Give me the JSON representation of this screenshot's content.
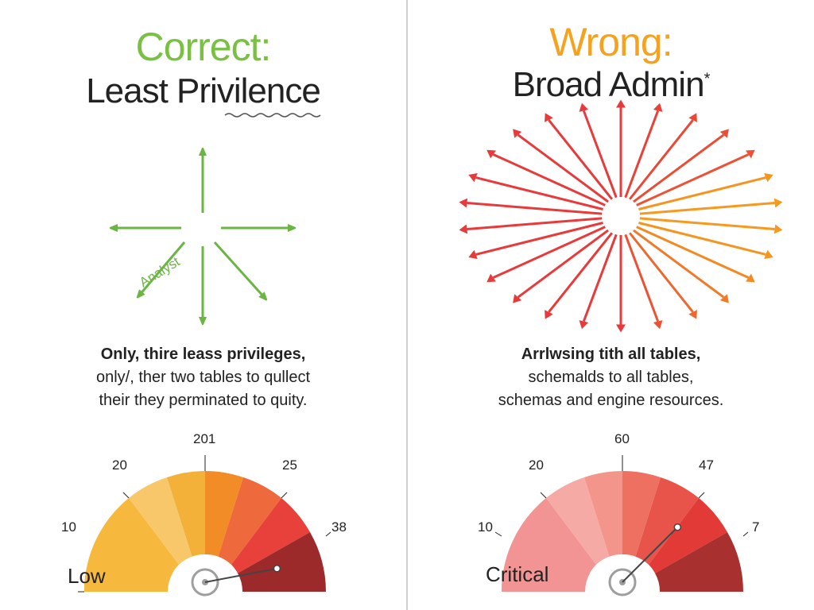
{
  "left": {
    "verdict": "Correct:",
    "title": "Least Privilence",
    "diagram_label": "Analyst",
    "caption": [
      "Only, thire leass privileges,",
      "only/, ther two tables to qullect",
      "their they perminated to quity."
    ],
    "gauge": {
      "ticks": [
        "10",
        "20",
        "201",
        "25",
        "38"
      ],
      "level_label": "Low",
      "needle_fraction": 0.94
    },
    "colors": {
      "verdict": "#79c043",
      "arrows": "#6bb543"
    }
  },
  "right": {
    "verdict": "Wrong:",
    "title": "Broad Admin",
    "title_mark": "*",
    "caption": [
      "Arrlwsing tith all tables,",
      "schemalds to all tables,",
      "schemas and engine resources."
    ],
    "gauge": {
      "ticks": [
        "10",
        "20",
        "60",
        "47",
        "7"
      ],
      "level_label": "Critical",
      "needle_fraction": 0.75
    },
    "colors": {
      "verdict": "#f5a21e",
      "arrows_start": "#e83a3a",
      "arrows_end": "#f79a1e"
    }
  }
}
